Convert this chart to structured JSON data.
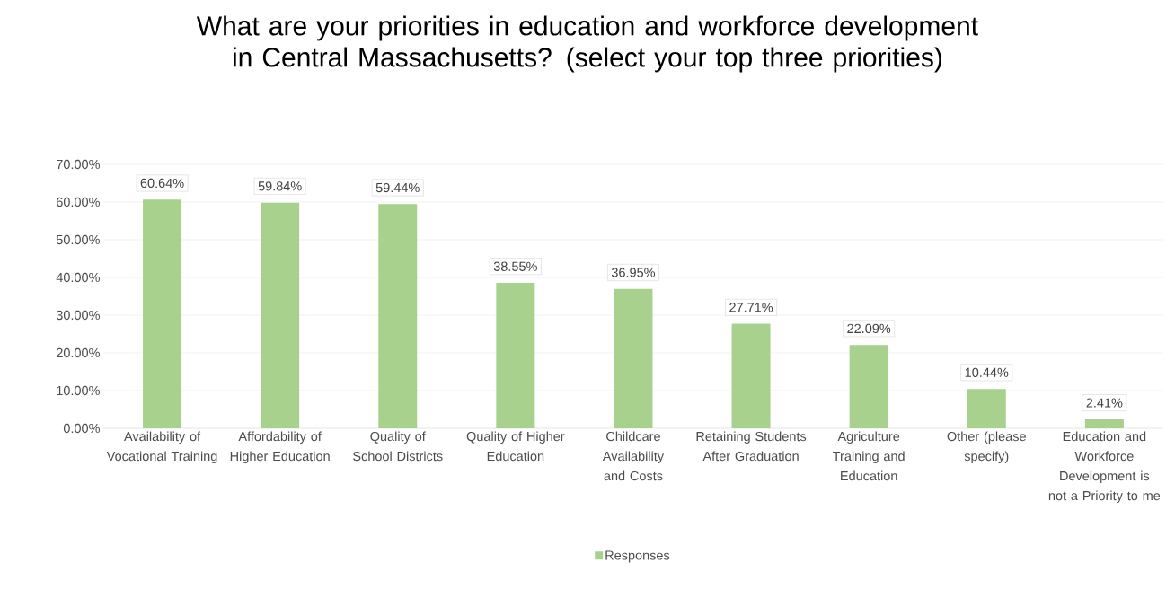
{
  "chart_data": {
    "type": "bar",
    "title": "What are your priorities in education and workforce development in Central Massachusetts? (select your top three priorities)",
    "categories": [
      "Availability of Vocational Training",
      "Affordability of Higher Education",
      "Quality of School Districts",
      "Quality of Higher Education",
      "Childcare Availability and Costs",
      "Retaining Students After Graduation",
      "Agriculture Training and Education",
      "Other (please specify)",
      "Education and Workforce Development is not a Priority to me"
    ],
    "series": [
      {
        "name": "Responses",
        "color": "#a9d18e",
        "values": [
          60.64,
          59.84,
          59.44,
          38.55,
          36.95,
          27.71,
          22.09,
          10.44,
          2.41
        ],
        "value_labels": [
          "60.64%",
          "59.84%",
          "59.44%",
          "38.55%",
          "36.95%",
          "27.71%",
          "22.09%",
          "10.44%",
          "2.41%"
        ]
      }
    ],
    "ylim": [
      0,
      70
    ],
    "yticks": [
      {
        "value": 0,
        "label": "0.00%"
      },
      {
        "value": 10,
        "label": "10.00%"
      },
      {
        "value": 20,
        "label": "20.00%"
      },
      {
        "value": 30,
        "label": "30.00%"
      },
      {
        "value": 40,
        "label": "40.00%"
      },
      {
        "value": 50,
        "label": "50.00%"
      },
      {
        "value": 60,
        "label": "60.00%"
      },
      {
        "value": 70,
        "label": "70.00%"
      }
    ],
    "grid": "y",
    "legend": "bottom"
  }
}
